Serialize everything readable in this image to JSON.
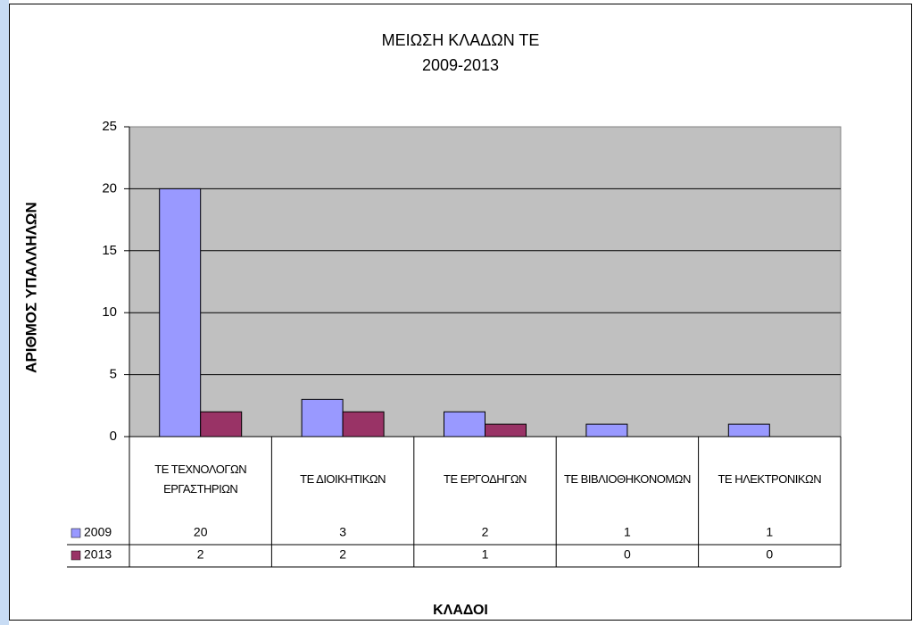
{
  "chart_data": {
    "type": "bar",
    "title": "ΜΕΙΩΣΗ ΚΛΑΔΩΝ ΤΕ",
    "subtitle": "2009-2013",
    "y_label": "ΑΡΙΘΜΟΣ ΥΠΑΛΛΗΛΩΝ",
    "x_label": "ΚΛΑΔΟΙ",
    "categories": [
      "ΤΕ ΤΕΧΝΟΛΟΓΩΝ ΕΡΓΑΣΤΗΡΙΩΝ",
      "ΤΕ ΔΙΟΙΚΗΤΙΚΩΝ",
      "ΤΕ ΕΡΓΟΔΗΓΩΝ",
      "ΤΕ ΒΙΒΛΙΟΘΗΚΟΝΟΜΩΝ",
      "ΤΕ ΗΛΕΚΤΡΟΝΙΚΩΝ"
    ],
    "series": [
      {
        "name": "2009",
        "color": "#9999ff",
        "values": [
          20,
          3,
          2,
          1,
          1
        ]
      },
      {
        "name": "2013",
        "color": "#993366",
        "values": [
          2,
          2,
          1,
          0,
          0
        ]
      }
    ],
    "ylim": [
      0,
      25
    ],
    "yticks": [
      0,
      5,
      10,
      15,
      20,
      25
    ],
    "grid": true
  }
}
